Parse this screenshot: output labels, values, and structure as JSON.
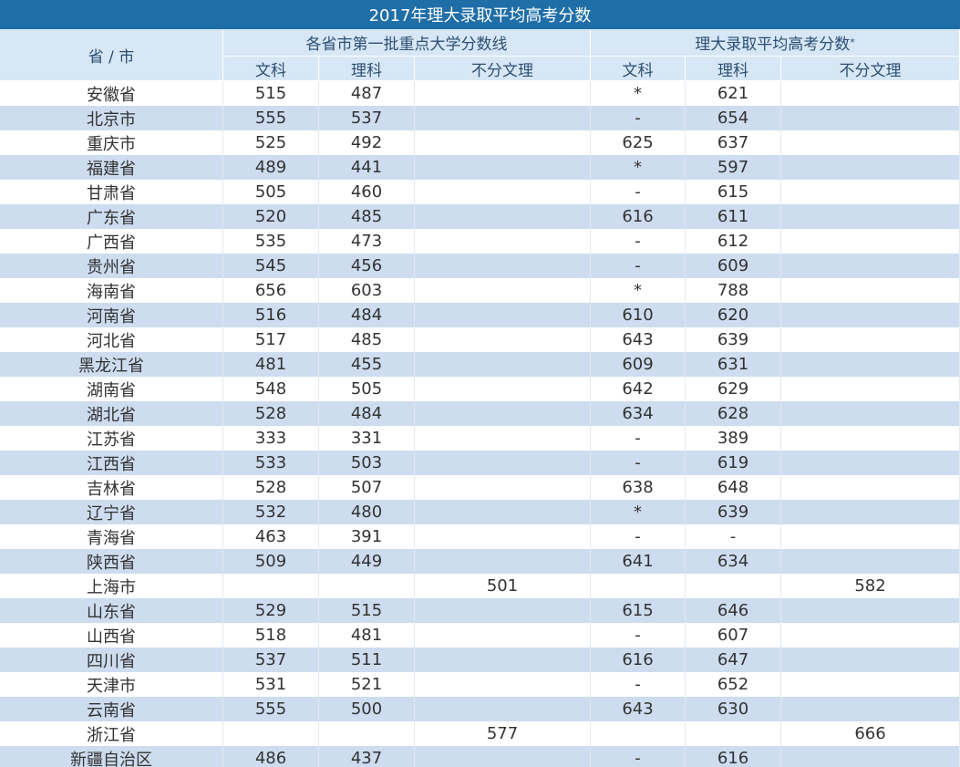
{
  "title": "2017年理大录取平均高考分数",
  "header": {
    "region": "省 / 市",
    "group1": "各省市第一批重点大学分数线",
    "group2": "理大录取平均高考分数",
    "group2_mark": "*",
    "subcolumns": [
      "文科",
      "理科",
      "不分文理",
      "文科",
      "理科",
      "不分文理"
    ]
  },
  "table": {
    "rows": [
      [
        "安徽省",
        515,
        487,
        null,
        "*",
        621,
        null
      ],
      [
        "北京市",
        555,
        537,
        null,
        "-",
        654,
        null
      ],
      [
        "重庆市",
        525,
        492,
        null,
        625,
        637,
        null
      ],
      [
        "福建省",
        489,
        441,
        null,
        "*",
        597,
        null
      ],
      [
        "甘肃省",
        505,
        460,
        null,
        "-",
        615,
        null
      ],
      [
        "广东省",
        520,
        485,
        null,
        616,
        611,
        null
      ],
      [
        "广西省",
        535,
        473,
        null,
        "-",
        612,
        null
      ],
      [
        "贵州省",
        545,
        456,
        null,
        "-",
        609,
        null
      ],
      [
        "海南省",
        656,
        603,
        null,
        "*",
        788,
        null
      ],
      [
        "河南省",
        516,
        484,
        null,
        610,
        620,
        null
      ],
      [
        "河北省",
        517,
        485,
        null,
        643,
        639,
        null
      ],
      [
        "黑龙江省",
        481,
        455,
        null,
        609,
        631,
        null
      ],
      [
        "湖南省",
        548,
        505,
        null,
        642,
        629,
        null
      ],
      [
        "湖北省",
        528,
        484,
        null,
        634,
        628,
        null
      ],
      [
        "江苏省",
        333,
        331,
        null,
        "-",
        389,
        null
      ],
      [
        "江西省",
        533,
        503,
        null,
        "-",
        619,
        null
      ],
      [
        "吉林省",
        528,
        507,
        null,
        638,
        648,
        null
      ],
      [
        "辽宁省",
        532,
        480,
        null,
        "*",
        639,
        null
      ],
      [
        "青海省",
        463,
        391,
        null,
        "-",
        "-",
        null
      ],
      [
        "陕西省",
        509,
        449,
        null,
        641,
        634,
        null
      ],
      [
        "上海市",
        null,
        null,
        501,
        null,
        null,
        582
      ],
      [
        "山东省",
        529,
        515,
        null,
        615,
        646,
        null
      ],
      [
        "山西省",
        518,
        481,
        null,
        "-",
        607,
        null
      ],
      [
        "四川省",
        537,
        511,
        null,
        616,
        647,
        null
      ],
      [
        "天津市",
        531,
        521,
        null,
        "-",
        652,
        null
      ],
      [
        "云南省",
        555,
        500,
        null,
        643,
        630,
        null
      ],
      [
        "浙江省",
        null,
        null,
        577,
        null,
        null,
        666
      ],
      [
        "新疆自治区",
        486,
        437,
        null,
        "-",
        616,
        null
      ]
    ]
  }
}
